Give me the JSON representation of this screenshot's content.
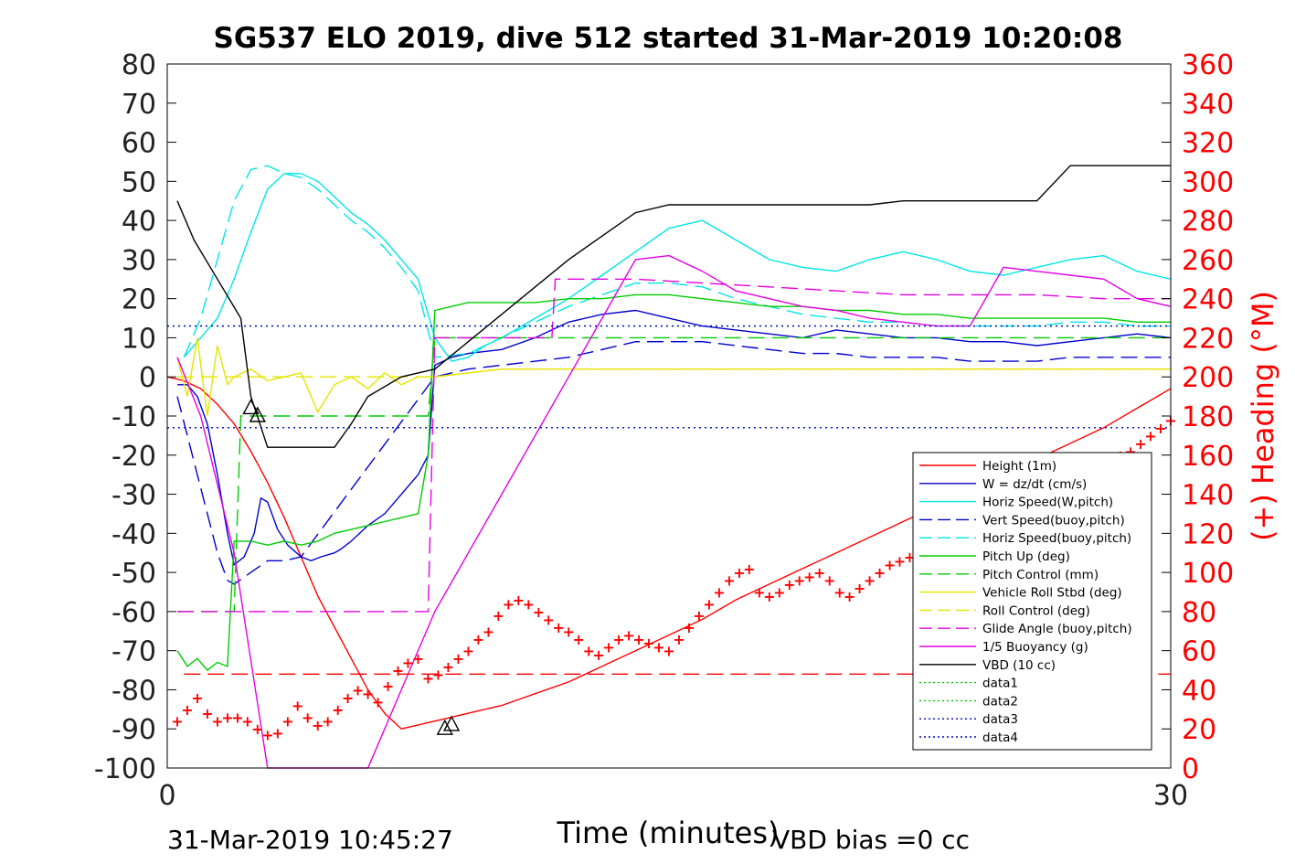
{
  "chart_data": {
    "type": "line",
    "title": "SG537 ELO 2019, dive 512 started 31-Mar-2019 10:20:08",
    "xlabel": "Time (minutes)",
    "ylabel": "",
    "y2label": "(+) Heading (°M)",
    "xlim": [
      0,
      30
    ],
    "ylim": [
      -100,
      80
    ],
    "y2lim": [
      0,
      360
    ],
    "xticks": [
      "0",
      "30"
    ],
    "yticks": [
      "80",
      "70",
      "60",
      "50",
      "40",
      "30",
      "20",
      "10",
      "0",
      "-10",
      "-20",
      "-30",
      "-40",
      "-50",
      "-60",
      "-70",
      "-80",
      "-90",
      "-100"
    ],
    "y2ticks": [
      "360",
      "340",
      "320",
      "300",
      "280",
      "260",
      "240",
      "220",
      "200",
      "180",
      "160",
      "140",
      "120",
      "100",
      "80",
      "60",
      "40",
      "20",
      "0"
    ],
    "footer_left": "31-Mar-2019 10:45:27",
    "footer_right": "VBD bias =0 cc",
    "legend_position": "lower-right",
    "legend": [
      {
        "label": "Height (1m)",
        "color": "#ff0000",
        "dash": "solid"
      },
      {
        "label": "W = dz/dt (cm/s)",
        "color": "#0000cc",
        "dash": "solid"
      },
      {
        "label": "Horiz Speed(W,pitch)",
        "color": "#00e5e5",
        "dash": "solid"
      },
      {
        "label": "Vert Speed(buoy,pitch)",
        "color": "#0000cc",
        "dash": "dashed"
      },
      {
        "label": "Horiz Speed(buoy,pitch)",
        "color": "#00e5e5",
        "dash": "dashed"
      },
      {
        "label": "Pitch Up (deg)",
        "color": "#00cc00",
        "dash": "solid"
      },
      {
        "label": "Pitch Control (mm)",
        "color": "#00cc00",
        "dash": "dashed"
      },
      {
        "label": "Vehicle Roll Stbd (deg)",
        "color": "#e5e500",
        "dash": "solid"
      },
      {
        "label": "Roll Control (deg)",
        "color": "#e5e500",
        "dash": "dashed"
      },
      {
        "label": "Glide Angle (buoy,pitch)",
        "color": "#e500e5",
        "dash": "dashed"
      },
      {
        "label": "1/5 Buoyancy (g)",
        "color": "#e500e5",
        "dash": "solid"
      },
      {
        "label": "VBD (10 cc)",
        "color": "#000000",
        "dash": "solid"
      },
      {
        "label": "data1",
        "color": "#00cc00",
        "dash": "dotted"
      },
      {
        "label": "data2",
        "color": "#00cc00",
        "dash": "dotted"
      },
      {
        "label": "data3",
        "color": "#0000cc",
        "dash": "dotted"
      },
      {
        "label": "data4",
        "color": "#0000cc",
        "dash": "dotted"
      }
    ],
    "series": [
      {
        "key": "height",
        "color": "#ff0000",
        "dash": "solid",
        "x": [
          0,
          0.5,
          1,
          1.5,
          2,
          2.5,
          3,
          3.5,
          4,
          4.5,
          5,
          5.5,
          6,
          6.5,
          7,
          7.5,
          8,
          8.5,
          9,
          10,
          11,
          12,
          13,
          14,
          15,
          16,
          17,
          18,
          19,
          20,
          21,
          22,
          23,
          24,
          25,
          26,
          27,
          28,
          29,
          30
        ],
        "y": [
          0,
          -1,
          -3,
          -7,
          -12,
          -19,
          -27,
          -36,
          -46,
          -56,
          -64,
          -72,
          -80,
          -86,
          -90,
          -89,
          -88,
          -87,
          -86,
          -84,
          -81,
          -78,
          -74,
          -70,
          -66,
          -62,
          -57,
          -53,
          -49,
          -45,
          -41,
          -37,
          -33,
          -29,
          -25,
          -21,
          -17,
          -13,
          -8,
          -3
        ]
      },
      {
        "key": "w",
        "color": "#0000cc",
        "dash": "solid",
        "x": [
          0.3,
          0.6,
          0.9,
          1.2,
          1.5,
          1.8,
          2.0,
          2.3,
          2.6,
          2.8,
          3.0,
          3.3,
          3.6,
          4.0,
          4.3,
          4.6,
          5.0,
          5.2,
          5.5,
          6.0,
          6.5,
          7.0,
          7.5,
          7.8,
          8.0,
          8.5,
          9.0,
          10,
          11,
          12,
          13,
          14,
          15,
          16,
          17,
          18,
          19,
          20,
          21,
          22,
          23,
          24,
          25,
          26,
          27,
          28,
          29,
          30
        ],
        "y": [
          -2,
          -2,
          -5,
          -12,
          -25,
          -40,
          -48,
          -46,
          -40,
          -31,
          -32,
          -39,
          -43,
          -46,
          -47,
          -46,
          -45,
          -44,
          -42,
          -38,
          -35,
          -30,
          -25,
          -20,
          3,
          5,
          6,
          7,
          10,
          14,
          16,
          17,
          15,
          13,
          12,
          11,
          10,
          12,
          11,
          10,
          10,
          9,
          9,
          8,
          9,
          10,
          11,
          10
        ]
      },
      {
        "key": "horiz_w",
        "color": "#00e5e5",
        "dash": "solid",
        "x": [
          0.5,
          1.0,
          1.5,
          2.0,
          2.5,
          3.0,
          3.5,
          4.0,
          4.5,
          5.0,
          5.5,
          6.0,
          6.5,
          7.0,
          7.5,
          8.0,
          8.5,
          9.0,
          9.5,
          10,
          11,
          12,
          13,
          14,
          15,
          16,
          17,
          18,
          19,
          20,
          21,
          22,
          23,
          24,
          25,
          26,
          27,
          28,
          29,
          30
        ],
        "y": [
          5,
          10,
          15,
          25,
          37,
          48,
          52,
          52,
          50,
          46,
          42,
          39,
          35,
          30,
          25,
          10,
          4,
          5,
          8,
          10,
          15,
          20,
          26,
          32,
          38,
          40,
          35,
          30,
          28,
          27,
          30,
          32,
          30,
          27,
          26,
          28,
          30,
          31,
          27,
          25
        ]
      },
      {
        "key": "vert_buoy",
        "color": "#0000cc",
        "dash": "dashed",
        "x": [
          0.3,
          0.6,
          0.9,
          1.2,
          1.5,
          1.8,
          2.0,
          2.5,
          3.0,
          3.5,
          4.0,
          8.0,
          9.0,
          10,
          11,
          12,
          13,
          14,
          15,
          16,
          17,
          18,
          19,
          20,
          21,
          22,
          23,
          24,
          25,
          26,
          27,
          28,
          29,
          30
        ],
        "y": [
          -5,
          -15,
          -25,
          -35,
          -45,
          -52,
          -53,
          -50,
          -47,
          -47,
          -46,
          0,
          2,
          3,
          4,
          5,
          7,
          9,
          9,
          9,
          8,
          7,
          6,
          6,
          5,
          5,
          5,
          4,
          4,
          4,
          5,
          5,
          5,
          5
        ]
      },
      {
        "key": "horiz_buoy",
        "color": "#00e5e5",
        "dash": "dashed",
        "x": [
          0.5,
          1.0,
          1.5,
          2.0,
          2.5,
          3.0,
          3.5,
          4.0,
          4.5,
          5.0,
          5.5,
          6.0,
          6.5,
          7.0,
          7.5,
          8.0,
          9.0,
          10,
          11,
          12,
          13,
          14,
          15,
          16,
          17,
          18,
          19,
          20,
          21,
          22,
          23,
          24,
          25,
          26,
          27,
          28,
          29,
          30
        ],
        "y": [
          5,
          15,
          30,
          45,
          53,
          54,
          52,
          51,
          48,
          44,
          40,
          37,
          33,
          28,
          22,
          5,
          6,
          10,
          14,
          18,
          21,
          24,
          24,
          23,
          20,
          18,
          16,
          15,
          14,
          14,
          13,
          13,
          13,
          13,
          14,
          14,
          13,
          13
        ]
      },
      {
        "key": "pitch_up",
        "color": "#00cc00",
        "dash": "solid",
        "x": [
          0.3,
          0.6,
          0.9,
          1.2,
          1.5,
          1.8,
          2.0,
          2.5,
          3.0,
          3.5,
          4.0,
          4.5,
          5.0,
          5.5,
          6.0,
          6.5,
          7.0,
          7.5,
          7.8,
          8.0,
          8.5,
          9,
          10,
          11,
          12,
          13,
          14,
          15,
          16,
          17,
          18,
          19,
          20,
          21,
          22,
          23,
          24,
          25,
          26,
          27,
          28,
          29,
          30
        ],
        "y": [
          -70,
          -74,
          -72,
          -75,
          -73,
          -74,
          -42,
          -42,
          -43,
          -42,
          -43,
          -42,
          -40,
          -39,
          -38,
          -37,
          -36,
          -35,
          -20,
          17,
          18,
          19,
          19,
          19,
          20,
          20,
          21,
          21,
          20,
          19,
          18,
          18,
          17,
          17,
          16,
          16,
          15,
          15,
          15,
          15,
          15,
          14,
          14
        ]
      },
      {
        "key": "pitch_control",
        "color": "#00cc00",
        "dash": "dashed",
        "x": [
          0.3,
          1.8,
          2.0,
          2.2,
          3,
          4,
          5,
          6,
          7,
          7.8,
          8.0,
          9,
          10,
          15,
          20,
          25,
          30
        ],
        "y": [
          -60,
          -60,
          -60,
          -10,
          -10,
          -10,
          -10,
          -10,
          -10,
          -10,
          10,
          10,
          10,
          10,
          10,
          10,
          10
        ]
      },
      {
        "key": "vehicle_roll",
        "color": "#e5e500",
        "dash": "solid",
        "x": [
          0.3,
          0.6,
          0.9,
          1.2,
          1.5,
          1.8,
          2.0,
          2.5,
          3.0,
          3.5,
          4.0,
          4.5,
          5.0,
          5.5,
          6.0,
          6.5,
          7.0,
          7.5,
          8.0,
          9,
          10,
          15,
          20,
          25,
          30
        ],
        "y": [
          5,
          -5,
          10,
          -10,
          8,
          -2,
          0,
          2,
          -1,
          0,
          1,
          -9,
          -2,
          0,
          -3,
          1,
          -2,
          0,
          0,
          1,
          2,
          2,
          2,
          2,
          2
        ]
      },
      {
        "key": "roll_control",
        "color": "#e5e500",
        "dash": "dashed",
        "x": [
          0.3,
          2,
          4,
          6,
          8,
          10,
          15,
          20,
          25,
          30
        ],
        "y": [
          0,
          0,
          0,
          0,
          0,
          2,
          2,
          2,
          2,
          2
        ]
      },
      {
        "key": "glide_angle",
        "color": "#e500e5",
        "dash": "dashed",
        "x": [
          0.3,
          0.5,
          1.0,
          1.5,
          2.0,
          2.5,
          3.0,
          4.0,
          5.0,
          6.0,
          7.0,
          7.8,
          8.0,
          9.0,
          10.0,
          11.0,
          11.5,
          11.6,
          12,
          14,
          16,
          18,
          20,
          22,
          24,
          26,
          28,
          30
        ],
        "y": [
          -60,
          -60,
          -60,
          -60,
          -60,
          -60,
          -60,
          -60,
          -60,
          -60,
          -60,
          -60,
          10,
          10,
          10,
          10,
          10,
          25,
          25,
          25,
          24,
          23,
          22,
          21,
          21,
          21,
          20,
          20
        ]
      },
      {
        "key": "buoyancy",
        "color": "#e500e5",
        "dash": "solid",
        "x": [
          0.3,
          1,
          2,
          3,
          3.5,
          5,
          6,
          7,
          8,
          9,
          10,
          11,
          12,
          13,
          14,
          15,
          16,
          17,
          18,
          19,
          20,
          21,
          22,
          23,
          24,
          25,
          26,
          27,
          28,
          29,
          30
        ],
        "y": [
          5,
          -10,
          -45,
          -100,
          -100,
          -100,
          -100,
          -80,
          -60,
          -45,
          -30,
          -15,
          0,
          15,
          30,
          31,
          27,
          22,
          20,
          18,
          17,
          15,
          14,
          13,
          13,
          28,
          27,
          26,
          25,
          20,
          18
        ]
      },
      {
        "key": "vbd",
        "color": "#000000",
        "dash": "solid",
        "x": [
          0.3,
          0.8,
          1.5,
          2.2,
          2.5,
          3.0,
          3.5,
          4.0,
          4.5,
          5.0,
          5.5,
          6,
          7,
          8,
          9,
          10,
          11,
          12,
          13,
          14,
          15,
          16,
          17,
          18,
          19,
          20,
          21,
          22,
          23,
          24,
          25,
          26,
          27,
          28,
          29,
          30
        ],
        "y": [
          45,
          35,
          25,
          15,
          -5,
          -18,
          -18,
          -18,
          -18,
          -18,
          -12,
          -5,
          0,
          2,
          9,
          16,
          23,
          30,
          36,
          42,
          44,
          44,
          44,
          44,
          44,
          44,
          44,
          45,
          45,
          45,
          45,
          45,
          54,
          54,
          54,
          54
        ]
      },
      {
        "key": "data1",
        "color": "#00cc00",
        "dash": "dotted",
        "x": [
          0,
          30
        ],
        "y": [
          13,
          13
        ]
      },
      {
        "key": "data2",
        "color": "#00cc00",
        "dash": "dotted",
        "x": [
          0,
          30
        ],
        "y": [
          -13,
          -13
        ]
      },
      {
        "key": "data3",
        "color": "#0000cc",
        "dash": "dotted",
        "x": [
          0,
          30
        ],
        "y": [
          13,
          13
        ]
      },
      {
        "key": "data4",
        "color": "#0000cc",
        "dash": "dotted",
        "x": [
          0,
          30
        ],
        "y": [
          -13,
          -13
        ]
      },
      {
        "key": "depth_threshold",
        "color": "#ff0000",
        "dash": "dashed",
        "x": [
          0.5,
          30
        ],
        "y": [
          -76,
          -76
        ]
      }
    ],
    "heading": {
      "axis": "right",
      "color": "#ff0000",
      "marker": "+",
      "x": [
        0.3,
        0.6,
        0.9,
        1.2,
        1.5,
        1.8,
        2.1,
        2.4,
        2.7,
        3.0,
        3.3,
        3.6,
        3.9,
        4.2,
        4.5,
        4.8,
        5.1,
        5.4,
        5.7,
        6.0,
        6.3,
        6.6,
        6.9,
        7.2,
        7.5,
        7.8,
        8.1,
        8.4,
        8.7,
        9.0,
        9.3,
        9.6,
        9.9,
        10.2,
        10.5,
        10.8,
        11.1,
        11.4,
        11.7,
        12.0,
        12.3,
        12.6,
        12.9,
        13.2,
        13.5,
        13.8,
        14.1,
        14.4,
        14.7,
        15.0,
        15.3,
        15.6,
        15.9,
        16.2,
        16.5,
        16.8,
        17.1,
        17.4,
        17.7,
        18.0,
        18.3,
        18.6,
        18.9,
        19.2,
        19.5,
        19.8,
        20.1,
        20.4,
        20.7,
        21.0,
        21.3,
        21.6,
        21.9,
        22.2,
        22.5,
        22.8,
        23.1,
        23.4,
        23.7,
        24.0,
        24.3,
        24.6,
        24.9,
        25.2,
        25.5,
        25.8,
        26.1,
        26.4,
        26.7,
        27.0,
        27.3,
        27.6,
        27.9,
        28.2,
        28.5,
        28.8,
        29.1,
        29.4,
        29.7,
        30.0
      ],
      "y": [
        24,
        30,
        36,
        28,
        24,
        26,
        26,
        24,
        20,
        17,
        18,
        24,
        32,
        26,
        22,
        24,
        30,
        36,
        40,
        38,
        34,
        42,
        50,
        54,
        56,
        46,
        48,
        52,
        56,
        60,
        66,
        70,
        78,
        84,
        86,
        84,
        80,
        76,
        72,
        70,
        66,
        60,
        58,
        62,
        66,
        68,
        66,
        64,
        62,
        60,
        66,
        72,
        78,
        84,
        90,
        96,
        100,
        102,
        90,
        88,
        90,
        94,
        96,
        98,
        100,
        96,
        90,
        88,
        92,
        96,
        100,
        104,
        106,
        108,
        110,
        110,
        110,
        112,
        116,
        120,
        124,
        122,
        120,
        118,
        120,
        124,
        126,
        128,
        132,
        140,
        148,
        152,
        156,
        158,
        160,
        162,
        166,
        170,
        174,
        178
      ]
    },
    "black_markers": {
      "triangles": [
        {
          "x": 2.5,
          "y": -8
        },
        {
          "x": 2.7,
          "y": -10
        },
        {
          "x": 8.3,
          "y": -90
        },
        {
          "x": 8.5,
          "y": -89
        }
      ]
    }
  }
}
